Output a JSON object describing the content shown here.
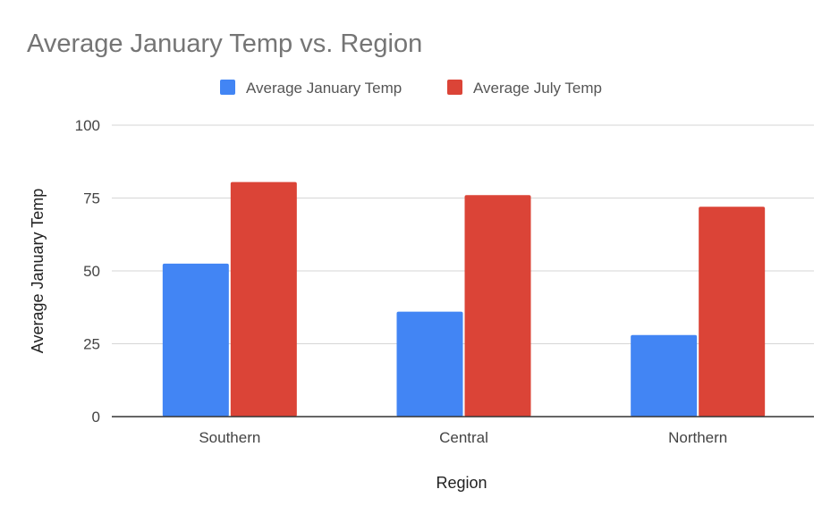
{
  "chart_data": {
    "type": "bar",
    "title": "Average January Temp vs. Region",
    "xlabel": "Region",
    "ylabel": "Average January Temp",
    "categories": [
      "Southern",
      "Central",
      "Northern"
    ],
    "series": [
      {
        "name": "Average January Temp",
        "values": [
          52.5,
          36,
          28
        ],
        "color": "#4285f4"
      },
      {
        "name": "Average July Temp",
        "values": [
          80.5,
          76,
          72
        ],
        "color": "#db4437"
      }
    ],
    "ylim": [
      0,
      100
    ],
    "yticks": [
      0,
      25,
      50,
      75,
      100
    ],
    "grid": true,
    "legend_position": "top-center"
  }
}
